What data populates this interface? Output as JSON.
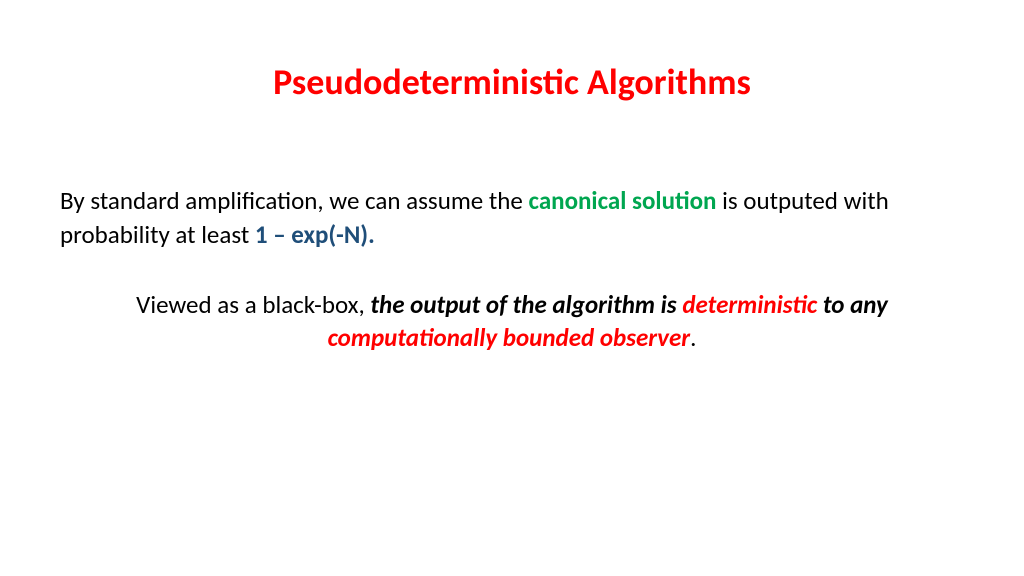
{
  "title": {
    "text": "Pseudodeterministic Algorithms",
    "color": "#ff0000",
    "fontsize": 36
  },
  "para1": {
    "fontsize": 25,
    "color_default": "#000000",
    "runs": [
      {
        "text": "By standard amplification, we can assume the ",
        "color": "#000000",
        "bold": false
      },
      {
        "text": "canonical solution",
        "color": "#00a650",
        "bold": true
      },
      {
        "text": " is outputed with probability at least ",
        "color": "#000000",
        "bold": false
      },
      {
        "text": "1 – exp(-N).",
        "color": "#1f4e79",
        "bold": true
      }
    ]
  },
  "para2": {
    "fontsize": 25,
    "runs": [
      {
        "text": "Viewed as a black-box, ",
        "color": "#000000",
        "bold": false,
        "italic": false
      },
      {
        "text": "the output of the algorithm is ",
        "color": "#000000",
        "bold": true,
        "italic": true
      },
      {
        "text": "deterministic",
        "color": "#ff0000",
        "bold": true,
        "italic": true
      },
      {
        "text": " to any ",
        "color": "#000000",
        "bold": true,
        "italic": true
      },
      {
        "text": "computationally bounded observer",
        "color": "#ff0000",
        "bold": true,
        "italic": true
      },
      {
        "text": ".",
        "color": "#000000",
        "bold": false,
        "italic": false
      }
    ]
  }
}
